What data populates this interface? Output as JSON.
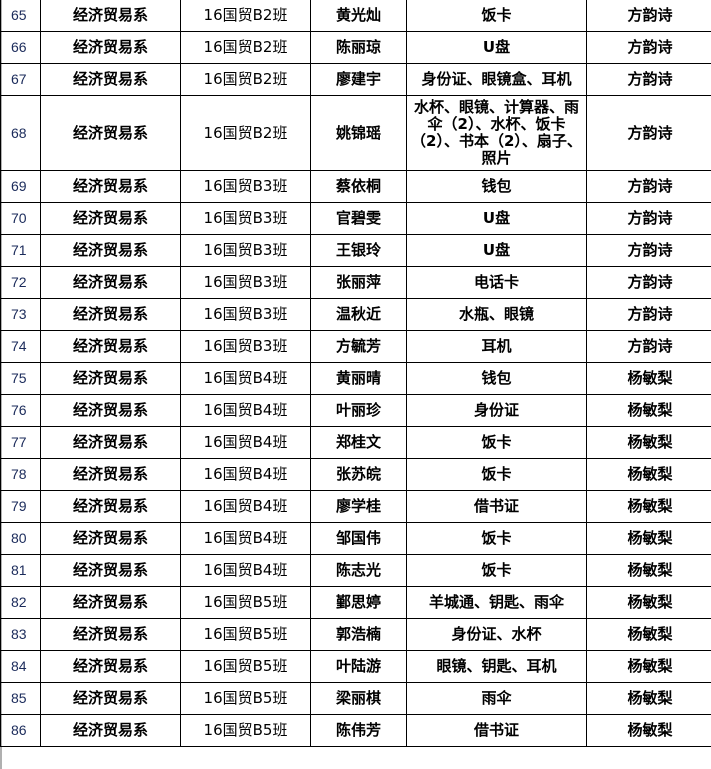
{
  "rows": [
    {
      "no": "65",
      "dept": "经济贸易系",
      "cls": "16国贸B2班",
      "name": "黄光灿",
      "items": "饭卡",
      "teacher": "方韵诗"
    },
    {
      "no": "66",
      "dept": "经济贸易系",
      "cls": "16国贸B2班",
      "name": "陈丽琼",
      "items": "U盘",
      "teacher": "方韵诗"
    },
    {
      "no": "67",
      "dept": "经济贸易系",
      "cls": "16国贸B2班",
      "name": "廖建宇",
      "items": "身份证、眼镜盒、耳机",
      "teacher": "方韵诗"
    },
    {
      "no": "68",
      "dept": "经济贸易系",
      "cls": "16国贸B2班",
      "name": "姚锦瑶",
      "items": "水杯、眼镜、计算器、雨伞（2）、水杯、饭卡（2）、书本（2）、扇子、照片",
      "teacher": "方韵诗"
    },
    {
      "no": "69",
      "dept": "经济贸易系",
      "cls": "16国贸B3班",
      "name": "蔡依桐",
      "items": "钱包",
      "teacher": "方韵诗"
    },
    {
      "no": "70",
      "dept": "经济贸易系",
      "cls": "16国贸B3班",
      "name": "官碧雯",
      "items": "U盘",
      "teacher": "方韵诗"
    },
    {
      "no": "71",
      "dept": "经济贸易系",
      "cls": "16国贸B3班",
      "name": "王银玲",
      "items": "U盘",
      "teacher": "方韵诗"
    },
    {
      "no": "72",
      "dept": "经济贸易系",
      "cls": "16国贸B3班",
      "name": "张丽萍",
      "items": "电话卡",
      "teacher": "方韵诗"
    },
    {
      "no": "73",
      "dept": "经济贸易系",
      "cls": "16国贸B3班",
      "name": "温秋近",
      "items": "水瓶、眼镜",
      "teacher": "方韵诗"
    },
    {
      "no": "74",
      "dept": "经济贸易系",
      "cls": "16国贸B3班",
      "name": "方毓芳",
      "items": "耳机",
      "teacher": "方韵诗"
    },
    {
      "no": "75",
      "dept": "经济贸易系",
      "cls": "16国贸B4班",
      "name": "黄丽晴",
      "items": "钱包",
      "teacher": "杨敏梨"
    },
    {
      "no": "76",
      "dept": "经济贸易系",
      "cls": "16国贸B4班",
      "name": "叶丽珍",
      "items": "身份证",
      "teacher": "杨敏梨"
    },
    {
      "no": "77",
      "dept": "经济贸易系",
      "cls": "16国贸B4班",
      "name": "郑桂文",
      "items": "饭卡",
      "teacher": "杨敏梨"
    },
    {
      "no": "78",
      "dept": "经济贸易系",
      "cls": "16国贸B4班",
      "name": "张苏皖",
      "items": "饭卡",
      "teacher": "杨敏梨"
    },
    {
      "no": "79",
      "dept": "经济贸易系",
      "cls": "16国贸B4班",
      "name": "廖学桂",
      "items": "借书证",
      "teacher": "杨敏梨"
    },
    {
      "no": "80",
      "dept": "经济贸易系",
      "cls": "16国贸B4班",
      "name": "邹国伟",
      "items": "饭卡",
      "teacher": "杨敏梨"
    },
    {
      "no": "81",
      "dept": "经济贸易系",
      "cls": "16国贸B4班",
      "name": "陈志光",
      "items": "饭卡",
      "teacher": "杨敏梨"
    },
    {
      "no": "82",
      "dept": "经济贸易系",
      "cls": "16国贸B5班",
      "name": "鄞思婷",
      "items": "羊城通、钥匙、雨伞",
      "teacher": "杨敏梨"
    },
    {
      "no": "83",
      "dept": "经济贸易系",
      "cls": "16国贸B5班",
      "name": "郭浩楠",
      "items": "身份证、水杯",
      "teacher": "杨敏梨"
    },
    {
      "no": "84",
      "dept": "经济贸易系",
      "cls": "16国贸B5班",
      "name": "叶陆游",
      "items": "眼镜、钥匙、耳机",
      "teacher": "杨敏梨"
    },
    {
      "no": "85",
      "dept": "经济贸易系",
      "cls": "16国贸B5班",
      "name": "梁丽棋",
      "items": "雨伞",
      "teacher": "杨敏梨"
    },
    {
      "no": "86",
      "dept": "经济贸易系",
      "cls": "16国贸B5班",
      "name": "陈伟芳",
      "items": "借书证",
      "teacher": "杨敏梨"
    }
  ]
}
